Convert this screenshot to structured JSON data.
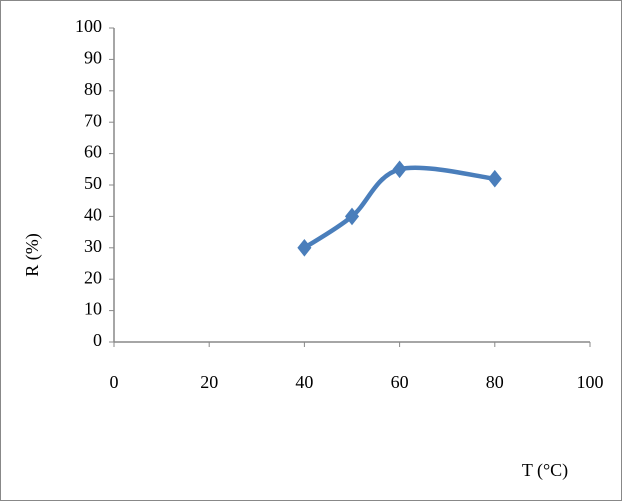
{
  "chart_data": {
    "type": "line",
    "x_label": "T (°C)",
    "y_label": "R (%)",
    "x": [
      40,
      50,
      60,
      80
    ],
    "series": [
      {
        "color": "#4a7ebb",
        "values": [
          30,
          40,
          55,
          52
        ]
      }
    ],
    "xlim": [
      0,
      100
    ],
    "xticks": [
      0,
      20,
      40,
      60,
      80,
      100
    ],
    "ylim": [
      0,
      100
    ],
    "yticks": [
      0,
      10,
      20,
      30,
      40,
      50,
      60,
      70,
      80,
      90,
      100
    ],
    "grid": false,
    "smooth": true,
    "marker": "diamond"
  }
}
